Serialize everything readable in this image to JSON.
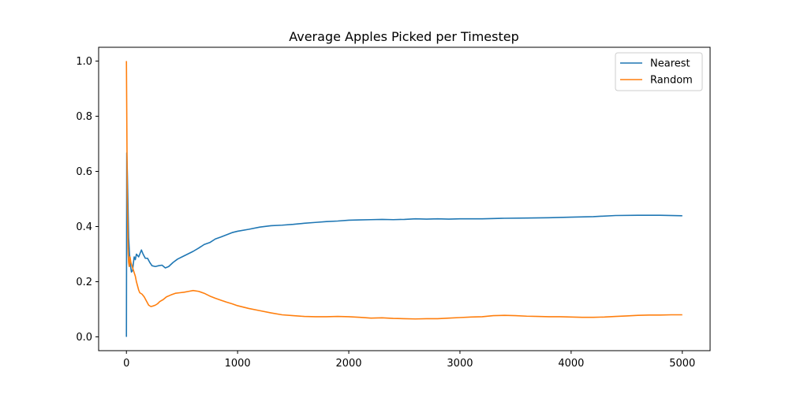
{
  "chart_data": {
    "type": "line",
    "title": "Average Apples Picked per Timestep",
    "xlabel": "",
    "ylabel": "",
    "xlim": [
      -250,
      5250
    ],
    "ylim": [
      -0.05,
      1.05
    ],
    "xticks": [
      0,
      1000,
      2000,
      3000,
      4000,
      5000
    ],
    "yticks": [
      0.0,
      0.2,
      0.4,
      0.6,
      0.8,
      1.0
    ],
    "xtick_labels": [
      "0",
      "1000",
      "2000",
      "3000",
      "4000",
      "5000"
    ],
    "ytick_labels": [
      "0.0",
      "0.2",
      "0.4",
      "0.6",
      "0.8",
      "1.0"
    ],
    "grid": false,
    "legend_position": "top-right",
    "series": [
      {
        "name": "Nearest",
        "color": "#1f77b4",
        "points": [
          [
            0,
            0.0
          ],
          [
            3,
            0.667
          ],
          [
            8,
            0.6
          ],
          [
            14,
            0.48
          ],
          [
            20,
            0.36
          ],
          [
            28,
            0.3
          ],
          [
            36,
            0.26
          ],
          [
            45,
            0.235
          ],
          [
            55,
            0.24
          ],
          [
            62,
            0.265
          ],
          [
            70,
            0.29
          ],
          [
            80,
            0.28
          ],
          [
            90,
            0.3
          ],
          [
            100,
            0.295
          ],
          [
            110,
            0.29
          ],
          [
            120,
            0.3
          ],
          [
            135,
            0.315
          ],
          [
            150,
            0.3
          ],
          [
            170,
            0.285
          ],
          [
            190,
            0.285
          ],
          [
            210,
            0.27
          ],
          [
            230,
            0.258
          ],
          [
            260,
            0.255
          ],
          [
            290,
            0.258
          ],
          [
            320,
            0.26
          ],
          [
            350,
            0.25
          ],
          [
            380,
            0.255
          ],
          [
            420,
            0.27
          ],
          [
            460,
            0.282
          ],
          [
            500,
            0.29
          ],
          [
            550,
            0.3
          ],
          [
            600,
            0.31
          ],
          [
            650,
            0.322
          ],
          [
            700,
            0.335
          ],
          [
            750,
            0.342
          ],
          [
            800,
            0.355
          ],
          [
            850,
            0.362
          ],
          [
            900,
            0.37
          ],
          [
            950,
            0.378
          ],
          [
            1000,
            0.383
          ],
          [
            1100,
            0.39
          ],
          [
            1200,
            0.398
          ],
          [
            1300,
            0.403
          ],
          [
            1400,
            0.405
          ],
          [
            1500,
            0.408
          ],
          [
            1600,
            0.412
          ],
          [
            1700,
            0.415
          ],
          [
            1800,
            0.418
          ],
          [
            1900,
            0.42
          ],
          [
            2000,
            0.423
          ],
          [
            2100,
            0.424
          ],
          [
            2200,
            0.425
          ],
          [
            2300,
            0.426
          ],
          [
            2400,
            0.425
          ],
          [
            2500,
            0.426
          ],
          [
            2600,
            0.428
          ],
          [
            2700,
            0.427
          ],
          [
            2800,
            0.428
          ],
          [
            2900,
            0.427
          ],
          [
            3000,
            0.428
          ],
          [
            3200,
            0.428
          ],
          [
            3400,
            0.43
          ],
          [
            3600,
            0.431
          ],
          [
            3800,
            0.432
          ],
          [
            4000,
            0.434
          ],
          [
            4200,
            0.436
          ],
          [
            4400,
            0.44
          ],
          [
            4600,
            0.441
          ],
          [
            4800,
            0.441
          ],
          [
            5000,
            0.439
          ]
        ]
      },
      {
        "name": "Random",
        "color": "#ff7f0e",
        "points": [
          [
            0,
            1.0
          ],
          [
            4,
            0.75
          ],
          [
            8,
            0.5
          ],
          [
            12,
            0.38
          ],
          [
            16,
            0.3
          ],
          [
            20,
            0.27
          ],
          [
            26,
            0.255
          ],
          [
            32,
            0.29
          ],
          [
            40,
            0.27
          ],
          [
            48,
            0.26
          ],
          [
            56,
            0.25
          ],
          [
            64,
            0.24
          ],
          [
            72,
            0.23
          ],
          [
            80,
            0.22
          ],
          [
            90,
            0.2
          ],
          [
            100,
            0.185
          ],
          [
            110,
            0.17
          ],
          [
            120,
            0.16
          ],
          [
            140,
            0.155
          ],
          [
            160,
            0.145
          ],
          [
            180,
            0.13
          ],
          [
            200,
            0.115
          ],
          [
            220,
            0.11
          ],
          [
            240,
            0.112
          ],
          [
            260,
            0.115
          ],
          [
            280,
            0.12
          ],
          [
            300,
            0.128
          ],
          [
            330,
            0.135
          ],
          [
            360,
            0.145
          ],
          [
            400,
            0.152
          ],
          [
            440,
            0.158
          ],
          [
            480,
            0.16
          ],
          [
            520,
            0.162
          ],
          [
            560,
            0.165
          ],
          [
            600,
            0.168
          ],
          [
            650,
            0.165
          ],
          [
            700,
            0.158
          ],
          [
            750,
            0.148
          ],
          [
            800,
            0.14
          ],
          [
            850,
            0.133
          ],
          [
            900,
            0.126
          ],
          [
            950,
            0.12
          ],
          [
            1000,
            0.113
          ],
          [
            1100,
            0.103
          ],
          [
            1200,
            0.095
          ],
          [
            1300,
            0.087
          ],
          [
            1400,
            0.08
          ],
          [
            1500,
            0.077
          ],
          [
            1600,
            0.074
          ],
          [
            1700,
            0.073
          ],
          [
            1800,
            0.073
          ],
          [
            1900,
            0.074
          ],
          [
            2000,
            0.073
          ],
          [
            2100,
            0.071
          ],
          [
            2200,
            0.068
          ],
          [
            2300,
            0.069
          ],
          [
            2400,
            0.067
          ],
          [
            2500,
            0.066
          ],
          [
            2600,
            0.065
          ],
          [
            2700,
            0.066
          ],
          [
            2800,
            0.066
          ],
          [
            2900,
            0.068
          ],
          [
            3000,
            0.07
          ],
          [
            3100,
            0.072
          ],
          [
            3200,
            0.073
          ],
          [
            3300,
            0.077
          ],
          [
            3400,
            0.078
          ],
          [
            3500,
            0.077
          ],
          [
            3600,
            0.075
          ],
          [
            3700,
            0.074
          ],
          [
            3800,
            0.073
          ],
          [
            3900,
            0.073
          ],
          [
            4000,
            0.072
          ],
          [
            4100,
            0.071
          ],
          [
            4200,
            0.071
          ],
          [
            4300,
            0.072
          ],
          [
            4400,
            0.074
          ],
          [
            4500,
            0.076
          ],
          [
            4600,
            0.078
          ],
          [
            4700,
            0.079
          ],
          [
            4800,
            0.079
          ],
          [
            4900,
            0.08
          ],
          [
            5000,
            0.08
          ]
        ]
      }
    ]
  }
}
